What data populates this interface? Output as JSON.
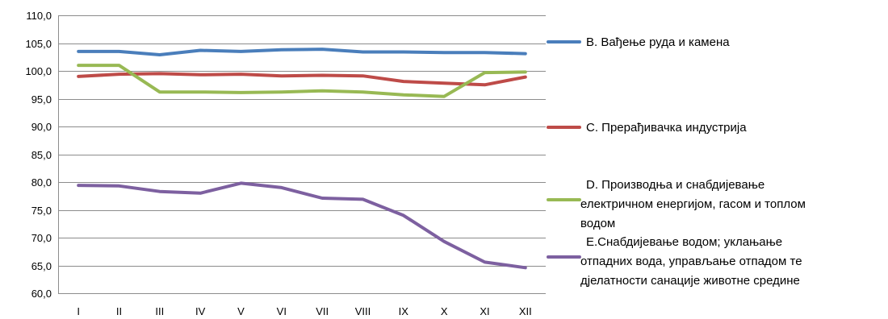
{
  "chart_data": {
    "type": "line",
    "title": "",
    "xlabel": "",
    "ylabel": "",
    "ylim": [
      60,
      110
    ],
    "ytick_step": 5,
    "ytick_format": "0,0",
    "grid": true,
    "legend_position": "right",
    "categories": [
      "I",
      "II",
      "III",
      "IV",
      "V",
      "VI",
      "VII",
      "VIII",
      "IX",
      "X",
      "XI",
      "XII"
    ],
    "series": [
      {
        "name": "B. Вађење руда и камена",
        "legend_lines": [
          "B. Вађење руда и камена"
        ],
        "color": "#4a7ebb",
        "values": [
          103.5,
          103.5,
          102.9,
          103.7,
          103.5,
          103.8,
          103.9,
          103.4,
          103.4,
          103.3,
          103.3,
          103.1
        ]
      },
      {
        "name": "C. Прерађивачка индустрија",
        "legend_lines": [
          "C. Прерађивачка индустрија"
        ],
        "color": "#be4b48",
        "values": [
          99.0,
          99.4,
          99.5,
          99.3,
          99.4,
          99.1,
          99.2,
          99.1,
          98.1,
          97.8,
          97.5,
          98.9
        ]
      },
      {
        "name": "D. Производња и снабдијевање електричном енергијом, гасом и топлом водом",
        "legend_lines": [
          "D. Производња и снабдијевање",
          "електричном енергијом, гасом и топлом",
          "водом"
        ],
        "color": "#98b954",
        "values": [
          101.0,
          101.0,
          96.2,
          96.2,
          96.1,
          96.2,
          96.4,
          96.2,
          95.7,
          95.4,
          99.7,
          99.8
        ]
      },
      {
        "name": "E.Снабдијевање водом; уклањање отпадних вода, управљање отпадом те дјелатности санације животне средине",
        "legend_lines": [
          "E.Снабдијевање водом; уклањање",
          "отпадних вода, управљање отпадом те",
          "дјелатности санације животне средине"
        ],
        "color": "#7d60a0",
        "values": [
          79.4,
          79.3,
          78.3,
          78.0,
          79.8,
          79.0,
          77.1,
          76.9,
          74.0,
          69.3,
          65.6,
          64.6
        ]
      }
    ]
  }
}
